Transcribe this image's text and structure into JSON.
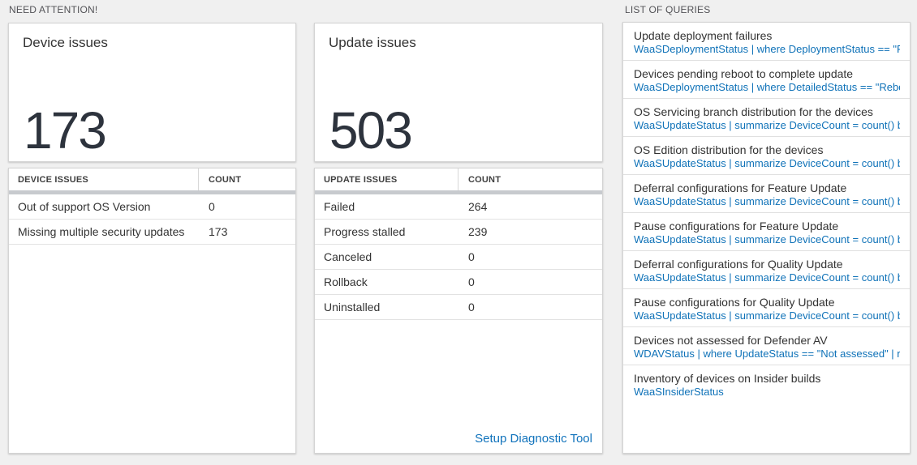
{
  "colors": {
    "accent_blue": "#0f72b8",
    "number_dark": "#2d333d",
    "page_background": "#f0f0f0",
    "header_bar_gray": "#c7cace"
  },
  "need_attention": {
    "section_title": "NEED ATTENTION!",
    "device_card": {
      "title": "Device issues",
      "value": "173"
    },
    "device_table": {
      "columns": [
        "DEVICE ISSUES",
        "COUNT"
      ],
      "rows": [
        {
          "label": "Out of support OS Version",
          "count": "0"
        },
        {
          "label": "Missing multiple security updates",
          "count": "173"
        }
      ]
    },
    "update_card": {
      "title": "Update issues",
      "value": "503"
    },
    "update_table": {
      "columns": [
        "UPDATE ISSUES",
        "COUNT"
      ],
      "rows": [
        {
          "label": "Failed",
          "count": "264"
        },
        {
          "label": "Progress stalled",
          "count": "239"
        },
        {
          "label": "Canceled",
          "count": "0"
        },
        {
          "label": "Rollback",
          "count": "0"
        },
        {
          "label": "Uninstalled",
          "count": "0"
        }
      ],
      "footer_link": "Setup Diagnostic Tool"
    }
  },
  "queries": {
    "section_title": "LIST OF QUERIES",
    "items": [
      {
        "title": "Update deployment failures",
        "query": "WaaSDeploymentStatus | where DeploymentStatus == \"Failed\" |..."
      },
      {
        "title": "Devices pending reboot to complete update",
        "query": "WaaSDeploymentStatus | where DetailedStatus == \"Reboot pend..."
      },
      {
        "title": "OS Servicing branch distribution for the devices",
        "query": "WaaSUpdateStatus | summarize DeviceCount = count() by OSSer..."
      },
      {
        "title": "OS Edition distribution for the devices",
        "query": "WaaSUpdateStatus | summarize DeviceCount = count() by OSEdit..."
      },
      {
        "title": "Deferral configurations for Feature Update",
        "query": "WaaSUpdateStatus | summarize DeviceCount = count() by Featur..."
      },
      {
        "title": "Pause configurations for Feature Update",
        "query": "WaaSUpdateStatus | summarize DeviceCount = count() by Featur..."
      },
      {
        "title": "Deferral configurations for Quality Update",
        "query": "WaaSUpdateStatus | summarize DeviceCount = count() by Qualit..."
      },
      {
        "title": "Pause configurations for Quality Update",
        "query": "WaaSUpdateStatus | summarize DeviceCount = count() by Qualit..."
      },
      {
        "title": "Devices not assessed for Defender AV",
        "query": "WDAVStatus | where UpdateStatus == \"Not assessed\" | render ta..."
      },
      {
        "title": "Inventory of devices on Insider builds",
        "query": "WaaSInsiderStatus"
      }
    ]
  }
}
